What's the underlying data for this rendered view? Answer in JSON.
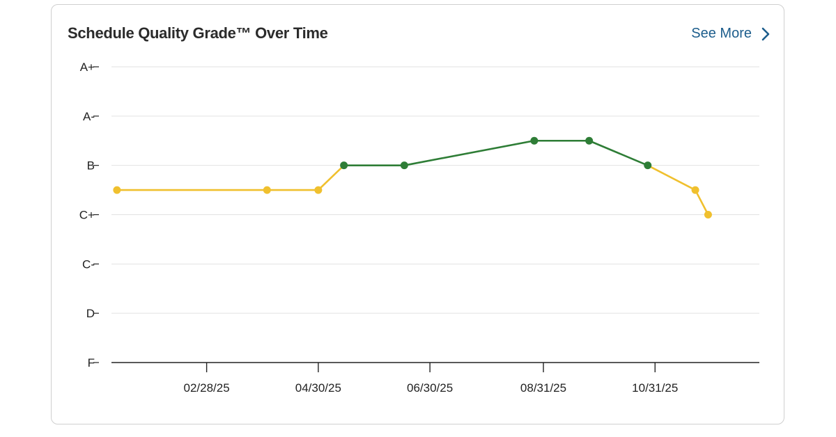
{
  "card": {
    "title": "Schedule Quality Grade™ Over Time",
    "see_more_label": "See More",
    "see_more_icon": "chevron-right-icon"
  },
  "colors": {
    "yellow": "#f0c02e",
    "green": "#2e7d36",
    "grid": "#e2e2e2",
    "axis": "#222222",
    "link": "#1c5d8c"
  },
  "chart_data": {
    "type": "line",
    "title": "Schedule Quality Grade™ Over Time",
    "xlabel": "",
    "ylabel": "",
    "y_categories": [
      "F",
      "D",
      "C-",
      "C+",
      "B",
      "A-",
      "A+"
    ],
    "x_ticks": [
      "02/28/25",
      "04/30/25",
      "06/30/25",
      "08/31/25",
      "10/31/25"
    ],
    "x_range": [
      "2025-01-07",
      "2025-12-27"
    ],
    "grid": true,
    "points": [
      {
        "date": "2025-01-10",
        "grade": "C+/B"
      },
      {
        "date": "2025-04-02",
        "grade": "C+/B"
      },
      {
        "date": "2025-04-30",
        "grade": "C+/B"
      },
      {
        "date": "2025-05-14",
        "grade": "B"
      },
      {
        "date": "2025-06-16",
        "grade": "B"
      },
      {
        "date": "2025-08-26",
        "grade": "B/A-"
      },
      {
        "date": "2025-09-25",
        "grade": "B/A-"
      },
      {
        "date": "2025-10-27",
        "grade": "B"
      },
      {
        "date": "2025-11-22",
        "grade": "C+/B"
      },
      {
        "date": "2025-11-29",
        "grade": "C+"
      }
    ],
    "point_colors": [
      "yellow",
      "yellow",
      "yellow",
      "green",
      "green",
      "green",
      "green",
      "green",
      "yellow",
      "yellow"
    ]
  }
}
